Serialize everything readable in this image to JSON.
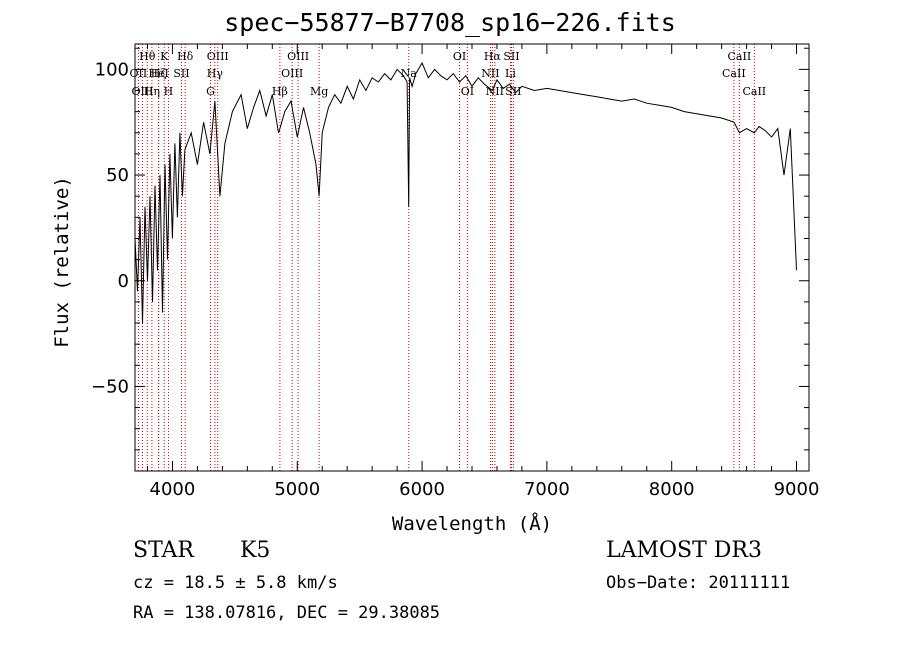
{
  "title": "spec−55877−B7708_sp16−226.fits",
  "object_class": "STAR",
  "subclass": "K5",
  "survey": "LAMOST DR3",
  "redshift_text": "cz = 18.5 ± 5.8 km/s",
  "obs_date_text": "Obs−Date: 20111111",
  "coords_text": "RA = 138.07816, DEC =  29.38085",
  "colors": {
    "spectrum": "#000000",
    "lines": "#cc0000",
    "axes": "#000000"
  },
  "chart_data": {
    "type": "line",
    "title": "spec−55877−B7708_sp16−226.fits",
    "xlabel": "Wavelength (Å)",
    "ylabel": "Flux (relative)",
    "xlim": [
      3700,
      9100
    ],
    "ylim": [
      -90,
      112
    ],
    "xticks": [
      4000,
      5000,
      6000,
      7000,
      8000,
      9000
    ],
    "yticks": [
      -50,
      0,
      50,
      100
    ],
    "series": [
      {
        "name": "flux",
        "x": [
          3700,
          3720,
          3740,
          3760,
          3780,
          3800,
          3820,
          3840,
          3860,
          3880,
          3900,
          3920,
          3940,
          3960,
          3980,
          4000,
          4020,
          4040,
          4060,
          4080,
          4100,
          4150,
          4200,
          4250,
          4300,
          4340,
          4380,
          4420,
          4480,
          4550,
          4600,
          4650,
          4700,
          4750,
          4800,
          4850,
          4861,
          4900,
          4950,
          5000,
          5050,
          5100,
          5150,
          5175,
          5200,
          5250,
          5300,
          5350,
          5400,
          5450,
          5500,
          5550,
          5600,
          5650,
          5700,
          5750,
          5800,
          5850,
          5880,
          5893,
          5900,
          5920,
          5950,
          6000,
          6050,
          6100,
          6150,
          6200,
          6250,
          6300,
          6350,
          6400,
          6450,
          6500,
          6563,
          6600,
          6650,
          6700,
          6750,
          6800,
          6900,
          7000,
          7100,
          7200,
          7300,
          7400,
          7500,
          7600,
          7700,
          7800,
          7900,
          8000,
          8100,
          8200,
          8300,
          8400,
          8500,
          8542,
          8600,
          8662,
          8700,
          8750,
          8800,
          8850,
          8900,
          8950,
          9000
        ],
        "values": [
          20,
          -5,
          30,
          -20,
          35,
          0,
          40,
          -10,
          45,
          5,
          50,
          -15,
          55,
          10,
          60,
          20,
          65,
          30,
          70,
          40,
          62,
          70,
          55,
          75,
          60,
          85,
          40,
          65,
          80,
          88,
          72,
          82,
          90,
          78,
          88,
          70,
          72,
          80,
          85,
          68,
          82,
          70,
          55,
          40,
          70,
          82,
          88,
          84,
          92,
          86,
          95,
          90,
          96,
          94,
          98,
          95,
          100,
          97,
          94,
          35,
          96,
          92,
          98,
          103,
          96,
          100,
          97,
          95,
          98,
          94,
          97,
          92,
          96,
          93,
          90,
          95,
          91,
          93,
          89,
          92,
          90,
          91,
          90,
          89,
          88,
          87,
          86,
          85,
          86,
          84,
          83,
          82,
          80,
          79,
          78,
          77,
          75,
          70,
          72,
          70,
          73,
          71,
          68,
          72,
          50,
          72,
          5
        ]
      }
    ],
    "line_markers": [
      {
        "label": "Hθ",
        "x": 3798,
        "row": 0
      },
      {
        "label": "OII",
        "x": 3727,
        "row": 1
      },
      {
        "label": "OIII",
        "x": 3760,
        "row": 2
      },
      {
        "label": "Hη",
        "x": 3835,
        "row": 2
      },
      {
        "label": "Hζ",
        "x": 3889,
        "row": 1
      },
      {
        "label": "HeI",
        "x": 3889,
        "row": 1
      },
      {
        "label": "K",
        "x": 3934,
        "row": 0
      },
      {
        "label": "H",
        "x": 3968,
        "row": 2
      },
      {
        "label": "SII",
        "x": 4072,
        "row": 1
      },
      {
        "label": "Hδ",
        "x": 4102,
        "row": 0
      },
      {
        "label": "OIII",
        "x": 4363,
        "row": 0
      },
      {
        "label": "Hγ",
        "x": 4340,
        "row": 1
      },
      {
        "label": "G",
        "x": 4305,
        "row": 2
      },
      {
        "label": "Hβ",
        "x": 4861,
        "row": 2
      },
      {
        "label": "OIII",
        "x": 4959,
        "row": 1
      },
      {
        "label": "OIII",
        "x": 5007,
        "row": 0
      },
      {
        "label": "Mg",
        "x": 5175,
        "row": 2
      },
      {
        "label": "Na",
        "x": 5893,
        "row": 1
      },
      {
        "label": "OI",
        "x": 6300,
        "row": 0
      },
      {
        "label": "OI",
        "x": 6363,
        "row": 2
      },
      {
        "label": "NII",
        "x": 6548,
        "row": 1
      },
      {
        "label": "Hα",
        "x": 6563,
        "row": 0
      },
      {
        "label": "NII",
        "x": 6583,
        "row": 2
      },
      {
        "label": "SII",
        "x": 6716,
        "row": 0
      },
      {
        "label": "Li",
        "x": 6708,
        "row": 1
      },
      {
        "label": "SII",
        "x": 6731,
        "row": 2
      },
      {
        "label": "CaII",
        "x": 8498,
        "row": 1
      },
      {
        "label": "CaII",
        "x": 8542,
        "row": 0
      },
      {
        "label": "CaII",
        "x": 8662,
        "row": 2
      }
    ]
  }
}
